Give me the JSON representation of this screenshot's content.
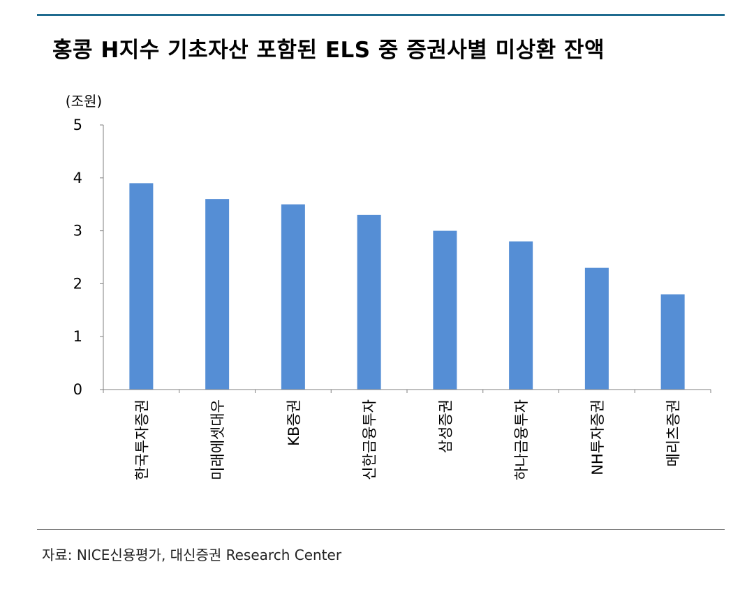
{
  "title": "홍콩 H지수 기초자산 포함된 ELS 중 증권사별 미상환 잔액",
  "source": "자료: NICE신용평가, 대신증권 Research Center",
  "colors": {
    "bar": "#558ed5",
    "rule": "#1f6b8f"
  },
  "chart_data": {
    "type": "bar",
    "unit_label": "(조원)",
    "categories": [
      "한국투자증권",
      "미래에셋대우",
      "KB증권",
      "신한금융투자",
      "삼성증권",
      "하나금융투자",
      "NH투자증권",
      "메리츠증권"
    ],
    "values": [
      3.9,
      3.6,
      3.5,
      3.3,
      3.0,
      2.8,
      2.3,
      1.8
    ],
    "ylim": [
      0,
      5
    ],
    "yticks": [
      "0",
      "1",
      "2",
      "3",
      "4",
      "5"
    ],
    "grid": false,
    "legend": "none"
  }
}
